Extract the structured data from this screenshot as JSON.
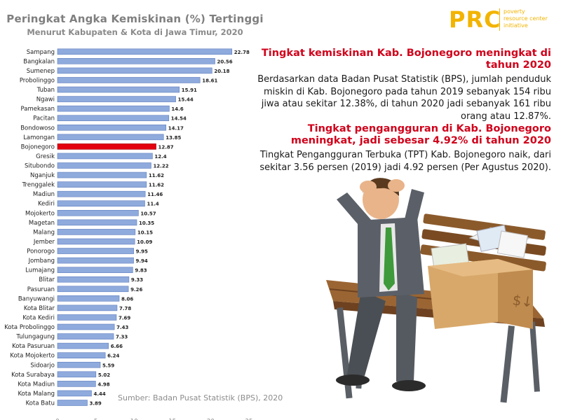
{
  "logo": {
    "letters": "PRC",
    "tagline": [
      "poverty",
      "resource center",
      "initiative"
    ],
    "color": "#f2b400"
  },
  "chart_data": {
    "type": "bar",
    "orientation": "horizontal",
    "title": "Peringkat Angka Kemiskinan (%) Tertinggi",
    "subtitle": "Menurut Kabupaten & Kota di Jawa Timur, 2020",
    "xlim": [
      0,
      25
    ],
    "xticks": [
      0,
      5,
      10,
      15,
      20,
      25
    ],
    "grid": false,
    "bar_color": "#8faadc",
    "highlight_color": "#e3000f",
    "highlight_category": "Bojonegoro",
    "categories": [
      "Sampang",
      "Bangkalan",
      "Sumenep",
      "Probolinggo",
      "Tuban",
      "Ngawi",
      "Pamekasan",
      "Pacitan",
      "Bondowoso",
      "Lamongan",
      "Bojonegoro",
      "Gresik",
      "Situbondo",
      "Nganjuk",
      "Trenggalek",
      "Madiun",
      "Kediri",
      "Mojokerto",
      "Magetan",
      "Malang",
      "Jember",
      "Ponorogo",
      "Jombang",
      "Lumajang",
      "Blitar",
      "Pasuruan",
      "Banyuwangi",
      "Kota Blitar",
      "Kota Kediri",
      "Kota Probolinggo",
      "Tulungagung",
      "Kota Pasuruan",
      "Kota Mojokerto",
      "Sidoarjo",
      "Kota Surabaya",
      "Kota Madiun",
      "Kota Malang",
      "Kota Batu"
    ],
    "values": [
      22.78,
      20.56,
      20.18,
      18.61,
      15.91,
      15.44,
      14.6,
      14.54,
      14.17,
      13.85,
      12.87,
      12.4,
      12.22,
      11.62,
      11.62,
      11.46,
      11.4,
      10.57,
      10.35,
      10.15,
      10.09,
      9.95,
      9.94,
      9.83,
      9.33,
      9.26,
      8.06,
      7.78,
      7.69,
      7.43,
      7.33,
      6.66,
      6.24,
      5.59,
      5.02,
      4.98,
      4.44,
      3.89
    ],
    "value_labels": [
      "22.78",
      "20.56",
      "20.18",
      "18.61",
      "15.91",
      "15.44",
      "14.6",
      "14.54",
      "14.17",
      "13.85",
      "12.87",
      "12.4",
      "12.22",
      "11.62",
      "11.62",
      "11.46",
      "11.4",
      "10.57",
      "10.35",
      "10.15",
      "10.09",
      "9.95",
      "9.94",
      "9.83",
      "9.33",
      "9.26",
      "8.06",
      "7.78",
      "7.69",
      "7.43",
      "7.33",
      "6.66",
      "6.24",
      "5.59",
      "5.02",
      "4.98",
      "4.44",
      "3.89"
    ],
    "source": "Sumber: Badan Pusat Statistik (BPS), 2020"
  },
  "panels": [
    {
      "heading": "Tingkat kemiskinan Kab. Bojonegoro meningkat di tahun 2020",
      "body": "Berdasarkan data Badan Pusat Statistik (BPS), jumlah penduduk miskin di Kab. Bojonegoro pada tahun 2019 sebanyak 154 ribu jiwa atau sekitar 12.38%, di tahun 2020 jadi sebanyak 161 ribu orang atau 12.87%."
    },
    {
      "heading": "Tingkat pengangguran di Kab. Bojonegoro meningkat, jadi sebesar 4.92% di tahun 2020",
      "body": "Tingkat Pengangguran Terbuka (TPT) Kab. Bojonegoro naik, dari sekitar 3.56 persen (2019) jadi 4.92 persen (Per Agustus 2020)."
    }
  ],
  "illustration": {
    "icon": "sad-man-on-bench-with-box-illustration",
    "box_label": "$↓"
  }
}
